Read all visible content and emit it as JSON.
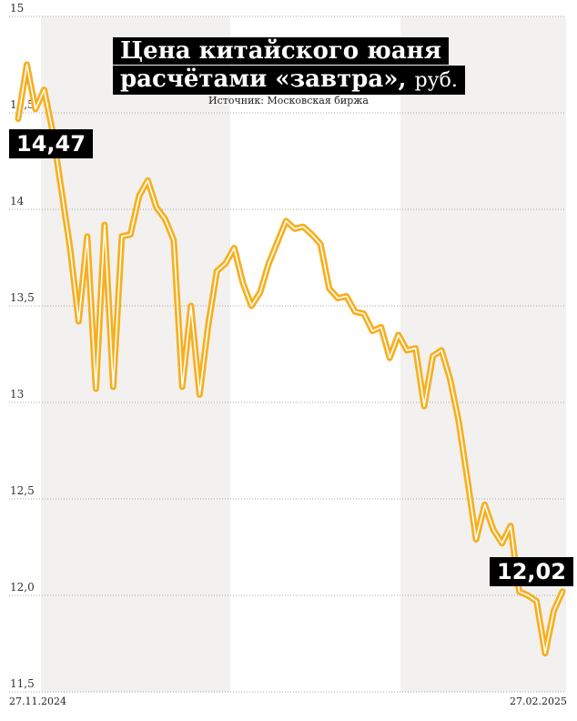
{
  "title_line1": "Цена китайского юаня",
  "title_line2": "расчётами «завтра»,",
  "title_unit": "руб.",
  "source": "Источник: Московская биржа",
  "start_label": "14,47",
  "end_label": "12,02",
  "colors": {
    "line": "#F7AF1E",
    "band": "#F2F1EF",
    "grid": "#8C8C8C"
  },
  "chart_data": {
    "type": "line",
    "ylim": [
      11.5,
      15
    ],
    "yticks": [
      {
        "value": 15,
        "label": "15"
      },
      {
        "value": 14.5,
        "label": "14,5"
      },
      {
        "value": 14,
        "label": "14"
      },
      {
        "value": 13.5,
        "label": "13,5"
      },
      {
        "value": 13,
        "label": "13"
      },
      {
        "value": 12.5,
        "label": "12,5"
      },
      {
        "value": 12,
        "label": "12,0"
      },
      {
        "value": 11.5,
        "label": "11,5"
      }
    ],
    "x_start_label": "27.11.2024",
    "x_end_label": "27.02.2025",
    "start_value": 14.47,
    "end_value": 12.02,
    "grid": true,
    "alternating_month_bands": true,
    "values": [
      14.47,
      14.75,
      14.52,
      14.62,
      14.4,
      14.1,
      13.8,
      13.42,
      13.86,
      13.07,
      13.92,
      13.08,
      13.86,
      13.87,
      14.07,
      14.15,
      14.01,
      13.95,
      13.84,
      13.08,
      13.5,
      13.04,
      13.4,
      13.68,
      13.72,
      13.8,
      13.62,
      13.5,
      13.57,
      13.72,
      13.83,
      13.94,
      13.9,
      13.91,
      13.87,
      13.82,
      13.59,
      13.54,
      13.55,
      13.47,
      13.46,
      13.37,
      13.39,
      13.23,
      13.35,
      13.27,
      13.28,
      12.98,
      13.24,
      13.27,
      13.12,
      12.9,
      12.6,
      12.29,
      12.47,
      12.34,
      12.27,
      12.36,
      12.02,
      12.0,
      11.97,
      11.7,
      11.92,
      12.02
    ]
  }
}
